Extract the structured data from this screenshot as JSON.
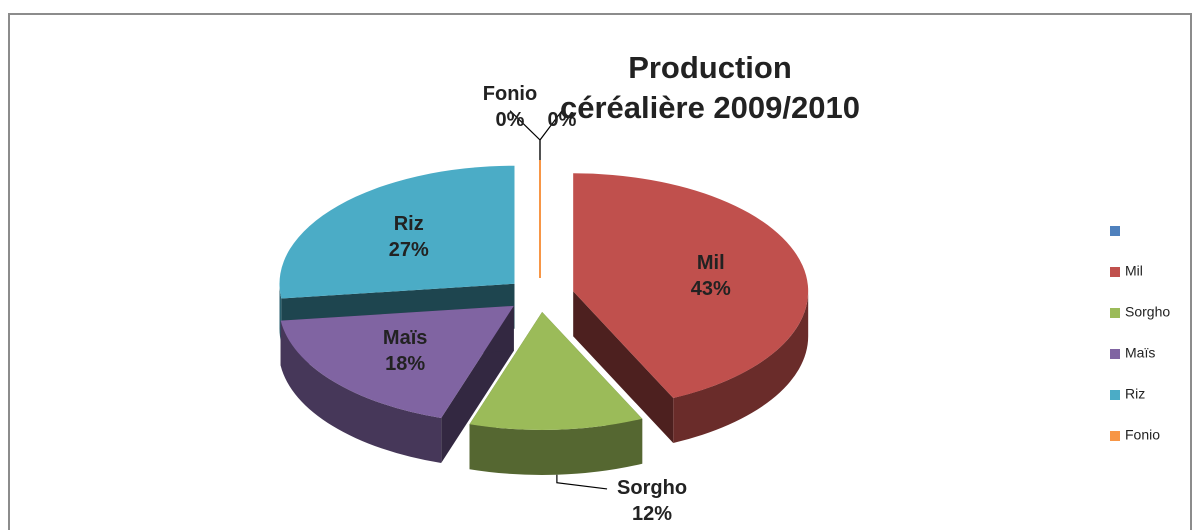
{
  "chart_data": {
    "type": "pie",
    "title": "Production céréalière 2009/2010",
    "categories": [
      null,
      "Mil",
      "Sorgho",
      "Maïs",
      "Riz",
      "Fonio"
    ],
    "values": [
      0,
      43,
      12,
      18,
      27,
      0
    ],
    "value_labels": [
      "0%",
      "43%",
      "12%",
      "18%",
      "27%",
      "0%"
    ],
    "colors": [
      "#4f81bd",
      "#c0504d",
      "#9bbb59",
      "#8064a2",
      "#4bacc6",
      "#f79646"
    ],
    "legend": "right"
  }
}
